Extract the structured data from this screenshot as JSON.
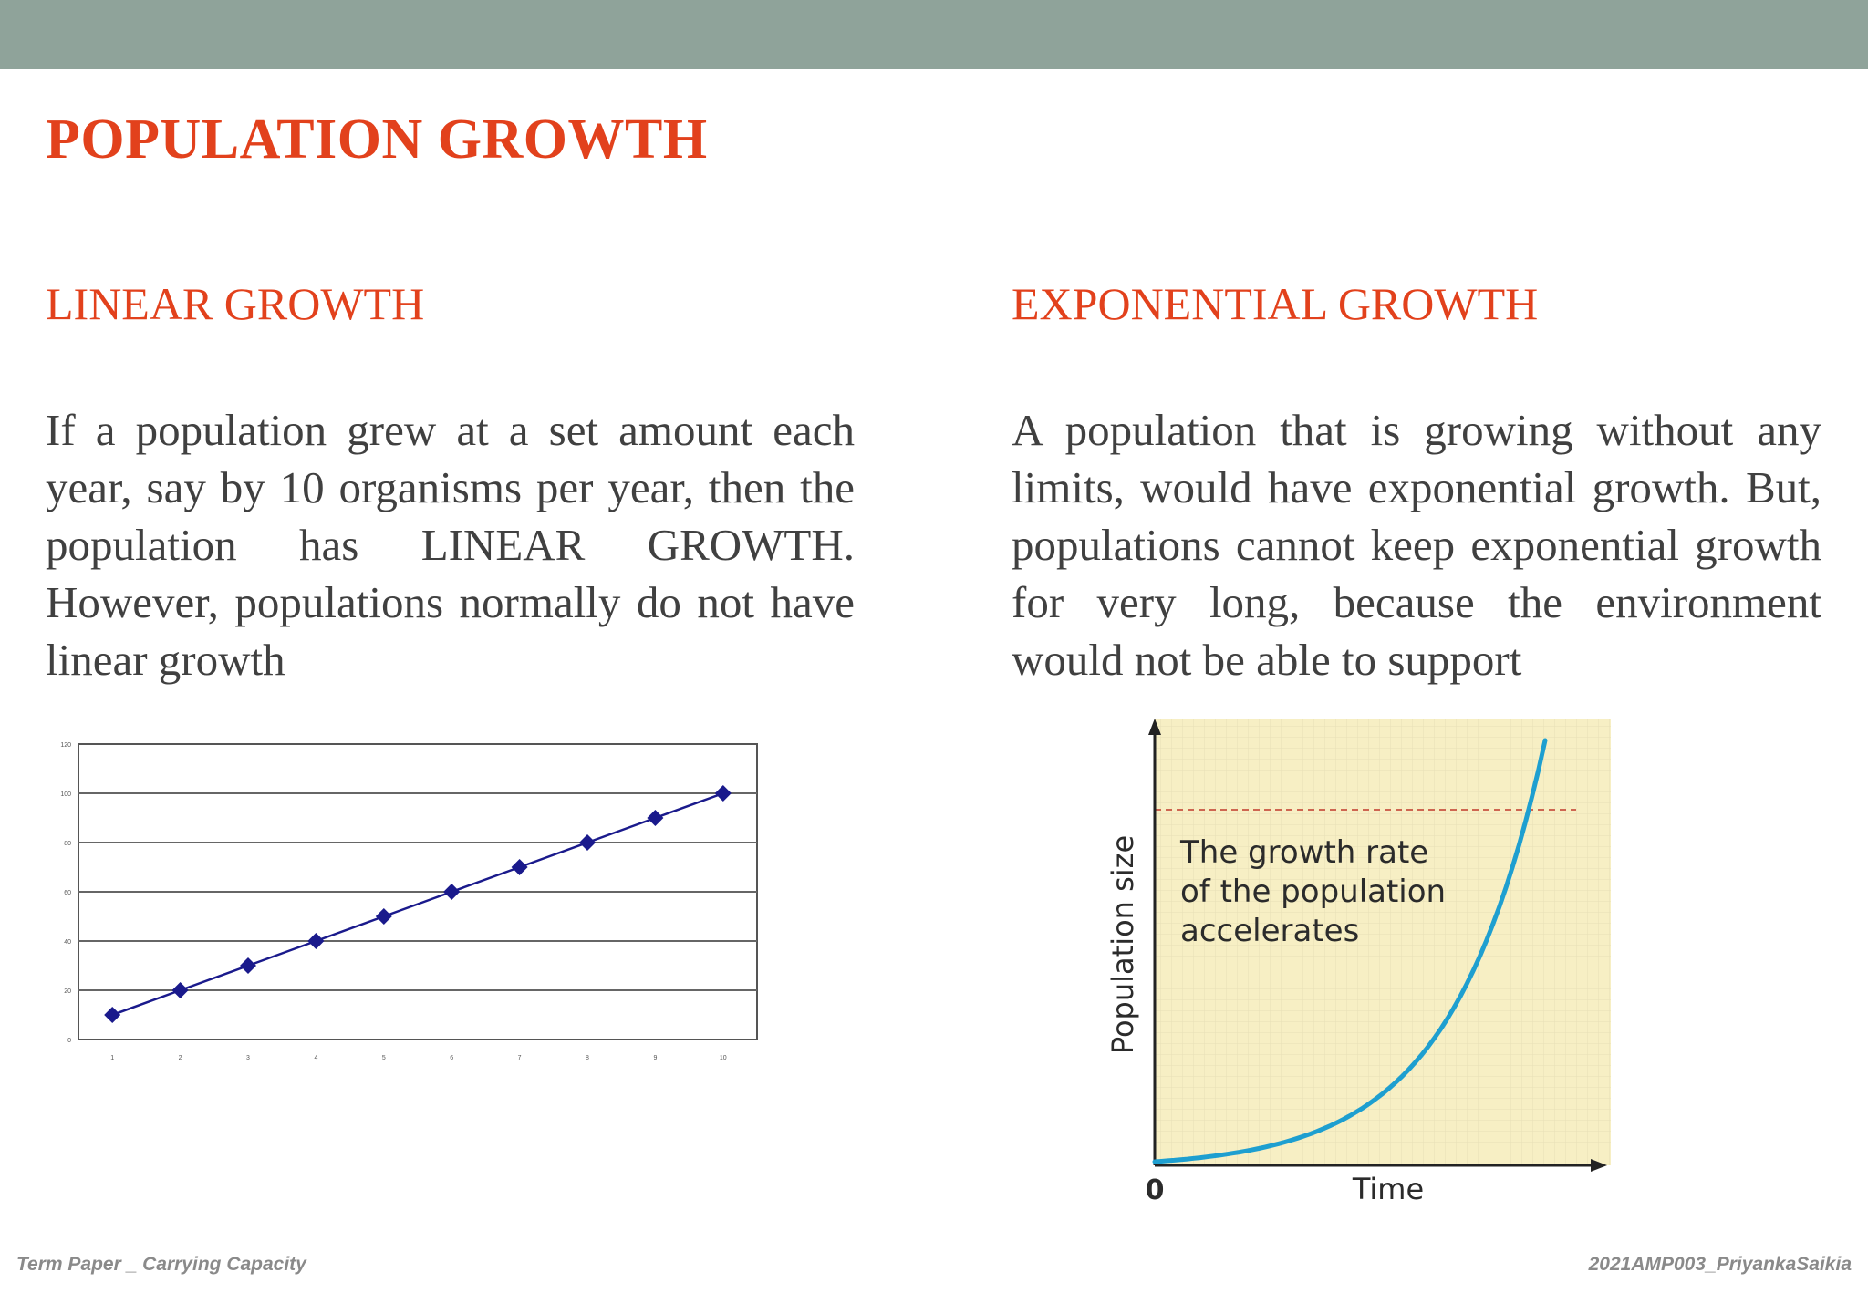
{
  "slide": {
    "title": "POPULATION GROWTH",
    "footer_left": "Term Paper _ Carrying Capacity",
    "footer_right": "2021AMP003_PriyankaSaikia"
  },
  "columns": {
    "left": {
      "heading": "LINEAR GROWTH",
      "body": "If a population grew at a set amount each year, say by 10 organisms per year, then the population has LINEAR GROWTH. However, populations normally do not have linear growth"
    },
    "right": {
      "heading": "EXPONENTIAL GROWTH",
      "body": "A population that is growing without any limits, would have exponential growth. But, populations cannot keep exponential growth for very long, because the environment would not be able to support"
    }
  },
  "colors": {
    "accent": "#e2411c",
    "top_bar": "#8fa39a",
    "linear_series": "#1a1a8c",
    "exp_curve": "#1e9fd0",
    "exp_background": "#f7efc4"
  },
  "chart_data": [
    {
      "type": "line",
      "x": [
        1,
        2,
        3,
        4,
        5,
        6,
        7,
        8,
        9,
        10
      ],
      "series": [
        {
          "values": [
            10,
            20,
            30,
            40,
            50,
            60,
            70,
            80,
            90,
            100
          ],
          "marker": "diamond"
        }
      ],
      "x_tick_labels": [
        "1",
        "2",
        "3",
        "4",
        "5",
        "6",
        "7",
        "8",
        "9",
        "10"
      ],
      "y_tick_labels": [
        "0",
        "20",
        "40",
        "60",
        "80",
        "100",
        "120"
      ],
      "ylim": [
        0,
        120
      ],
      "grid": true
    },
    {
      "type": "line",
      "xlabel": "Time",
      "ylabel": "Population size",
      "origin_label": "0",
      "annotation": "The growth rate of the population accelerates",
      "curve": "exponential",
      "reference_line": "dashed",
      "grid": false
    }
  ]
}
